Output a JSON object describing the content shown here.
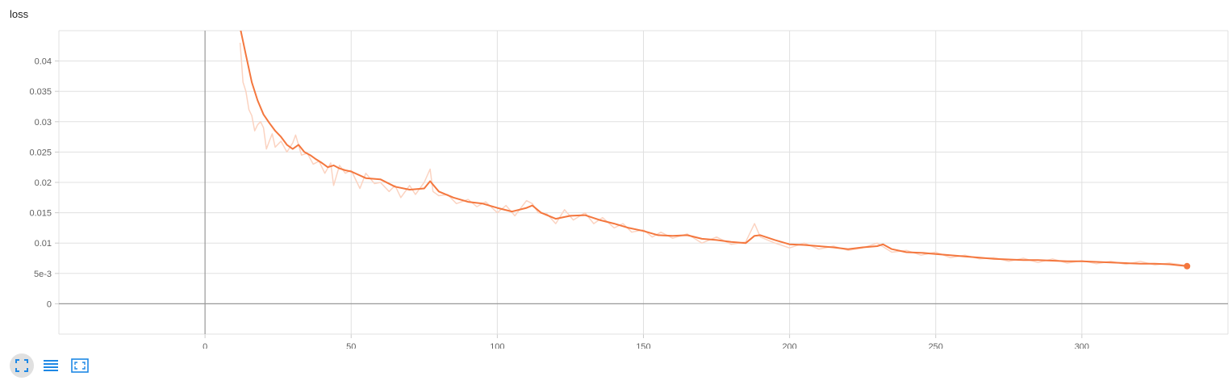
{
  "chart_title": "loss",
  "chart_data": {
    "type": "line",
    "title": "loss",
    "xlabel": "",
    "ylabel": "",
    "xlim": [
      -50,
      350
    ],
    "ylim": [
      -0.005,
      0.045
    ],
    "x_ticks": [
      0,
      50,
      100,
      150,
      200,
      250,
      300
    ],
    "x_tick_labels": [
      "0",
      "50",
      "100",
      "150",
      "200",
      "250",
      "300"
    ],
    "y_ticks": [
      0,
      0.005,
      0.01,
      0.015,
      0.02,
      0.025,
      0.03,
      0.035,
      0.04
    ],
    "y_tick_labels": [
      "0",
      "5e-3",
      "0.01",
      "0.015",
      "0.02",
      "0.025",
      "0.03",
      "0.035",
      "0.04"
    ],
    "grid": true,
    "legend": false,
    "series": [
      {
        "role": "smoothed",
        "color": "#f4773e",
        "x": [
          12,
          14,
          16,
          18,
          20,
          22,
          24,
          26,
          28,
          30,
          32,
          34,
          36,
          38,
          40,
          42,
          44,
          46,
          48,
          50,
          55,
          60,
          65,
          70,
          75,
          77,
          80,
          85,
          90,
          95,
          100,
          105,
          110,
          112,
          115,
          120,
          125,
          130,
          135,
          140,
          145,
          150,
          155,
          160,
          165,
          170,
          175,
          180,
          185,
          188,
          190,
          195,
          200,
          205,
          210,
          215,
          220,
          225,
          230,
          232,
          235,
          240,
          245,
          250,
          255,
          260,
          265,
          270,
          275,
          280,
          285,
          290,
          295,
          300,
          305,
          310,
          315,
          320,
          325,
          330,
          336
        ],
        "y": [
          0.0455,
          0.041,
          0.0365,
          0.0335,
          0.0312,
          0.0298,
          0.0285,
          0.0275,
          0.0262,
          0.0255,
          0.0262,
          0.025,
          0.0245,
          0.0238,
          0.0232,
          0.0225,
          0.0228,
          0.0223,
          0.022,
          0.0218,
          0.0207,
          0.0205,
          0.0193,
          0.0188,
          0.019,
          0.0202,
          0.0185,
          0.0175,
          0.0168,
          0.0165,
          0.0158,
          0.0152,
          0.0158,
          0.0162,
          0.015,
          0.014,
          0.0145,
          0.0146,
          0.0138,
          0.0132,
          0.0125,
          0.012,
          0.0113,
          0.0112,
          0.0113,
          0.0107,
          0.0105,
          0.0102,
          0.01,
          0.0112,
          0.0113,
          0.0105,
          0.0098,
          0.0097,
          0.0095,
          0.0093,
          0.009,
          0.0093,
          0.0095,
          0.0098,
          0.009,
          0.0085,
          0.0084,
          0.0082,
          0.008,
          0.0078,
          0.0076,
          0.0074,
          0.0073,
          0.0072,
          0.0072,
          0.0071,
          0.007,
          0.007,
          0.0069,
          0.0068,
          0.0067,
          0.0066,
          0.0066,
          0.0065,
          0.0062
        ]
      },
      {
        "role": "raw",
        "color": "#fbd3c1",
        "x": [
          12,
          13,
          14,
          15,
          16,
          17,
          18,
          19,
          20,
          21,
          22,
          23,
          24,
          26,
          28,
          30,
          31,
          33,
          35,
          37,
          39,
          41,
          43,
          44,
          46,
          48,
          50,
          53,
          55,
          58,
          60,
          63,
          65,
          67,
          70,
          72,
          75,
          77,
          78,
          80,
          83,
          86,
          90,
          93,
          96,
          100,
          103,
          106,
          110,
          112,
          114,
          117,
          120,
          123,
          126,
          130,
          133,
          136,
          140,
          143,
          146,
          150,
          153,
          156,
          160,
          165,
          170,
          175,
          180,
          185,
          188,
          190,
          195,
          200,
          205,
          210,
          215,
          220,
          225,
          230,
          235,
          240,
          245,
          250,
          255,
          260,
          265,
          270,
          275,
          280,
          285,
          290,
          295,
          300,
          305,
          310,
          315,
          320,
          325,
          330,
          336
        ],
        "y": [
          0.043,
          0.0365,
          0.035,
          0.032,
          0.031,
          0.0285,
          0.0295,
          0.03,
          0.029,
          0.0255,
          0.0268,
          0.028,
          0.0258,
          0.0268,
          0.025,
          0.0265,
          0.0278,
          0.0245,
          0.0248,
          0.023,
          0.0235,
          0.0215,
          0.0232,
          0.0195,
          0.0228,
          0.0215,
          0.022,
          0.019,
          0.0215,
          0.0198,
          0.02,
          0.0185,
          0.0195,
          0.0175,
          0.0195,
          0.018,
          0.02,
          0.0222,
          0.0185,
          0.0178,
          0.018,
          0.0165,
          0.0172,
          0.016,
          0.0168,
          0.015,
          0.0162,
          0.0145,
          0.017,
          0.0165,
          0.015,
          0.0148,
          0.0132,
          0.0155,
          0.0138,
          0.015,
          0.0132,
          0.0142,
          0.0125,
          0.0132,
          0.0118,
          0.0122,
          0.011,
          0.0118,
          0.0108,
          0.0115,
          0.01,
          0.011,
          0.0098,
          0.0102,
          0.0132,
          0.011,
          0.01,
          0.0092,
          0.01,
          0.009,
          0.0095,
          0.0088,
          0.0092,
          0.01,
          0.0085,
          0.0088,
          0.008,
          0.0085,
          0.0076,
          0.008,
          0.0074,
          0.0076,
          0.007,
          0.0075,
          0.0068,
          0.0074,
          0.0067,
          0.0071,
          0.0066,
          0.007,
          0.0065,
          0.007,
          0.0064,
          0.0067,
          0.0063
        ]
      }
    ]
  },
  "toolbar": {
    "expand_icon": "fullscreen-icon",
    "list_icon": "list-icon",
    "fit_icon": "fit-domain-icon",
    "active_color": "#1e88e5"
  }
}
